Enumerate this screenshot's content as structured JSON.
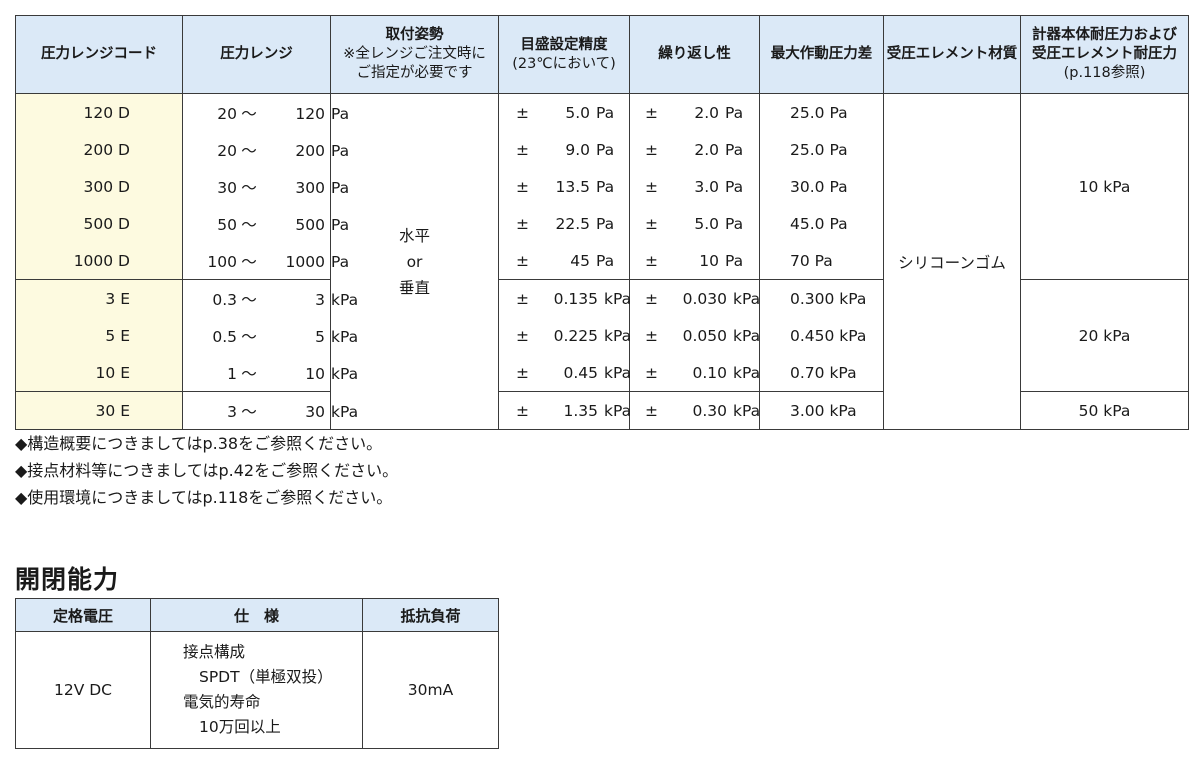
{
  "spec_table": {
    "headers": {
      "code": "圧力レンジコード",
      "range": "圧力レンジ",
      "mounting": [
        "取付姿勢",
        "※全レンジご注文時に",
        "ご指定が必要です"
      ],
      "accuracy": [
        "目盛設定精度",
        "(23℃において)"
      ],
      "repeatability": "繰り返し性",
      "max_diff": "最大作動圧力差",
      "element_material": "受圧エレメント材質",
      "pressure_resistance": [
        "計器本体耐圧力および",
        "受圧エレメント耐圧力",
        "(p.118参照)"
      ]
    },
    "rows": [
      {
        "code": "120 D",
        "range_low": "20",
        "range_sep": "～",
        "range_high": "120",
        "unit": "Pa",
        "acc_pm": "±",
        "acc": "5.0",
        "rep_pm": "±",
        "rep": "2.0",
        "max_diff": "25.0 Pa"
      },
      {
        "code": "200 D",
        "range_low": "20",
        "range_sep": "～",
        "range_high": "200",
        "unit": "Pa",
        "acc_pm": "±",
        "acc": "9.0",
        "rep_pm": "±",
        "rep": "2.0",
        "max_diff": "25.0 Pa"
      },
      {
        "code": "300 D",
        "range_low": "30",
        "range_sep": "～",
        "range_high": "300",
        "unit": "Pa",
        "acc_pm": "±",
        "acc": "13.5",
        "rep_pm": "±",
        "rep": "3.0",
        "max_diff": "30.0 Pa"
      },
      {
        "code": "500 D",
        "range_low": "50",
        "range_sep": "～",
        "range_high": "500",
        "unit": "Pa",
        "acc_pm": "±",
        "acc": "22.5",
        "rep_pm": "±",
        "rep": "5.0",
        "max_diff": "45.0 Pa"
      },
      {
        "code": "1000 D",
        "range_low": "100",
        "range_sep": "～",
        "range_high": "1000",
        "unit": "Pa",
        "acc_pm": "±",
        "acc": "45",
        "rep_pm": "±",
        "rep": "10",
        "max_diff": "70 Pa"
      },
      {
        "code": "3 E",
        "range_low": "0.3",
        "range_sep": "～",
        "range_high": "3",
        "unit": "kPa",
        "acc_pm": "±",
        "acc": "0.135",
        "rep_pm": "±",
        "rep": "0.030",
        "max_diff": "0.300 kPa"
      },
      {
        "code": "5 E",
        "range_low": "0.5",
        "range_sep": "～",
        "range_high": "5",
        "unit": "kPa",
        "acc_pm": "±",
        "acc": "0.225",
        "rep_pm": "±",
        "rep": "0.050",
        "max_diff": "0.450 kPa"
      },
      {
        "code": "10 E",
        "range_low": "1",
        "range_sep": "～",
        "range_high": "10",
        "unit": "kPa",
        "acc_pm": "±",
        "acc": "0.45",
        "rep_pm": "±",
        "rep": "0.10",
        "max_diff": "0.70 kPa"
      },
      {
        "code": "30 E",
        "range_low": "3",
        "range_sep": "～",
        "range_high": "30",
        "unit": "kPa",
        "acc_pm": "±",
        "acc": "1.35",
        "rep_pm": "±",
        "rep": "0.30",
        "max_diff": "3.00 kPa"
      }
    ],
    "mounting_value": [
      "水平",
      "or",
      "垂直"
    ],
    "element_material_value": "シリコーンゴム",
    "pressure_resistance_values": [
      "10 kPa",
      "20 kPa",
      "50 kPa"
    ]
  },
  "notes": [
    "◆構造概要につきましてはp.38をご参照ください。",
    "◆接点材料等につきましてはp.42をご参照ください。",
    "◆使用環境につきましてはp.118をご参照ください。"
  ],
  "switching": {
    "title": "開閉能力",
    "headers": {
      "voltage": "定格電圧",
      "spec": "仕　様",
      "load": "抵抗負荷"
    },
    "voltage": "12V DC",
    "spec_lines": [
      "接点構成",
      "SPDT（単極双投）",
      "電気的寿命",
      "10万回以上"
    ],
    "load": "30mA"
  },
  "colors": {
    "header_bg": "#dbe9f7",
    "code_bg": "#fdfae0",
    "border": "#3a3a3a"
  }
}
